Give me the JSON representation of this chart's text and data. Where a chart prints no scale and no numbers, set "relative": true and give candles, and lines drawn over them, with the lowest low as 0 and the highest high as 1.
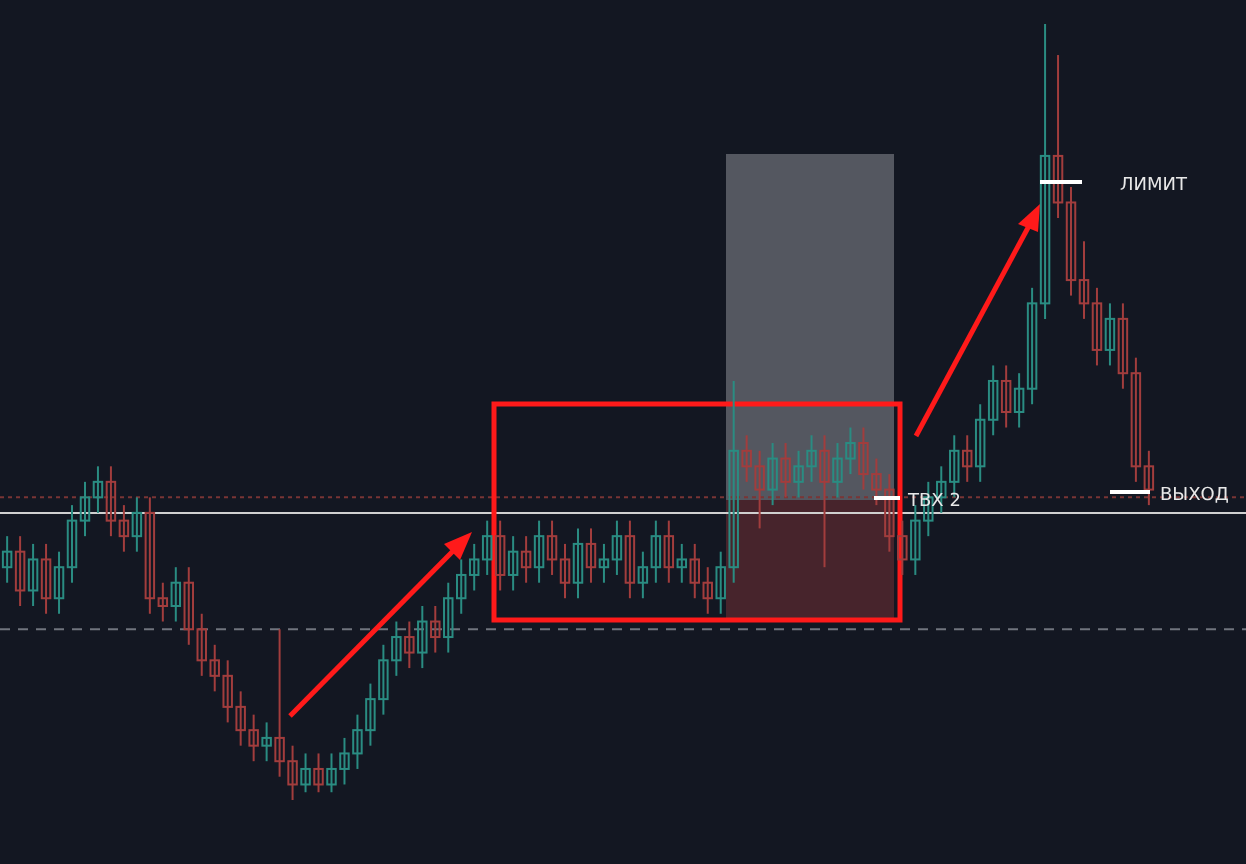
{
  "chart_data": {
    "type": "candlestick",
    "relative": true,
    "categories": [
      null,
      null,
      null,
      null,
      null,
      null,
      null,
      null,
      null,
      null,
      null,
      null,
      null,
      null,
      null,
      null,
      null,
      null,
      null,
      null,
      null,
      null,
      null,
      null,
      null,
      null,
      null,
      null,
      null,
      null,
      null,
      null,
      null,
      null,
      null,
      null,
      null,
      null,
      null,
      null,
      null,
      null,
      null,
      null,
      null,
      null,
      null,
      null,
      null,
      null,
      null,
      null,
      null,
      null,
      null,
      null,
      null,
      null,
      null,
      null,
      null,
      null,
      null,
      null,
      null,
      null,
      null,
      null,
      null,
      null,
      null,
      null,
      null,
      null,
      null,
      null,
      null,
      null,
      null,
      null,
      null,
      null,
      null,
      null,
      null,
      null,
      null,
      null,
      null
    ],
    "ohlc": [
      [
        0.3,
        0.34,
        0.28,
        0.32
      ],
      [
        0.32,
        0.34,
        0.25,
        0.27
      ],
      [
        0.27,
        0.33,
        0.25,
        0.31
      ],
      [
        0.31,
        0.33,
        0.24,
        0.26
      ],
      [
        0.26,
        0.32,
        0.24,
        0.3
      ],
      [
        0.3,
        0.38,
        0.28,
        0.36
      ],
      [
        0.36,
        0.41,
        0.34,
        0.39
      ],
      [
        0.39,
        0.43,
        0.37,
        0.41
      ],
      [
        0.41,
        0.43,
        0.34,
        0.36
      ],
      [
        0.36,
        0.38,
        0.32,
        0.34
      ],
      [
        0.34,
        0.39,
        0.32,
        0.37
      ],
      [
        0.37,
        0.39,
        0.24,
        0.26
      ],
      [
        0.26,
        0.28,
        0.23,
        0.25
      ],
      [
        0.25,
        0.3,
        0.23,
        0.28
      ],
      [
        0.28,
        0.3,
        0.2,
        0.22
      ],
      [
        0.22,
        0.24,
        0.16,
        0.18
      ],
      [
        0.18,
        0.2,
        0.14,
        0.16
      ],
      [
        0.16,
        0.18,
        0.1,
        0.12
      ],
      [
        0.12,
        0.14,
        0.07,
        0.09
      ],
      [
        0.09,
        0.11,
        0.05,
        0.07
      ],
      [
        0.07,
        0.1,
        0.05,
        0.08
      ],
      [
        0.08,
        0.22,
        0.03,
        0.05
      ],
      [
        0.05,
        0.07,
        0.0,
        0.02
      ],
      [
        0.02,
        0.06,
        0.01,
        0.04
      ],
      [
        0.04,
        0.06,
        0.01,
        0.02
      ],
      [
        0.02,
        0.06,
        0.01,
        0.04
      ],
      [
        0.04,
        0.08,
        0.02,
        0.06
      ],
      [
        0.06,
        0.11,
        0.04,
        0.09
      ],
      [
        0.09,
        0.15,
        0.07,
        0.13
      ],
      [
        0.13,
        0.2,
        0.11,
        0.18
      ],
      [
        0.18,
        0.23,
        0.16,
        0.21
      ],
      [
        0.21,
        0.23,
        0.17,
        0.19
      ],
      [
        0.19,
        0.25,
        0.17,
        0.23
      ],
      [
        0.23,
        0.25,
        0.19,
        0.21
      ],
      [
        0.21,
        0.28,
        0.19,
        0.26
      ],
      [
        0.26,
        0.31,
        0.24,
        0.29
      ],
      [
        0.29,
        0.33,
        0.27,
        0.31
      ],
      [
        0.31,
        0.36,
        0.29,
        0.34
      ],
      [
        0.34,
        0.36,
        0.27,
        0.29
      ],
      [
        0.29,
        0.34,
        0.27,
        0.32
      ],
      [
        0.32,
        0.34,
        0.28,
        0.3
      ],
      [
        0.3,
        0.36,
        0.28,
        0.34
      ],
      [
        0.34,
        0.36,
        0.29,
        0.31
      ],
      [
        0.31,
        0.33,
        0.26,
        0.28
      ],
      [
        0.28,
        0.35,
        0.26,
        0.33
      ],
      [
        0.33,
        0.35,
        0.28,
        0.3
      ],
      [
        0.3,
        0.33,
        0.28,
        0.31
      ],
      [
        0.31,
        0.36,
        0.29,
        0.34
      ],
      [
        0.34,
        0.36,
        0.26,
        0.28
      ],
      [
        0.28,
        0.32,
        0.26,
        0.3
      ],
      [
        0.3,
        0.36,
        0.28,
        0.34
      ],
      [
        0.34,
        0.36,
        0.28,
        0.3
      ],
      [
        0.3,
        0.33,
        0.28,
        0.31
      ],
      [
        0.31,
        0.33,
        0.26,
        0.28
      ],
      [
        0.28,
        0.3,
        0.24,
        0.26
      ],
      [
        0.26,
        0.32,
        0.24,
        0.3
      ],
      [
        0.3,
        0.54,
        0.28,
        0.45
      ],
      [
        0.45,
        0.47,
        0.41,
        0.43
      ],
      [
        0.43,
        0.45,
        0.35,
        0.4
      ],
      [
        0.4,
        0.46,
        0.38,
        0.44
      ],
      [
        0.44,
        0.46,
        0.39,
        0.41
      ],
      [
        0.41,
        0.45,
        0.39,
        0.43
      ],
      [
        0.43,
        0.47,
        0.41,
        0.45
      ],
      [
        0.45,
        0.47,
        0.3,
        0.41
      ],
      [
        0.41,
        0.46,
        0.39,
        0.44
      ],
      [
        0.44,
        0.48,
        0.42,
        0.46
      ],
      [
        0.46,
        0.48,
        0.4,
        0.42
      ],
      [
        0.42,
        0.44,
        0.38,
        0.4
      ],
      [
        0.4,
        0.42,
        0.32,
        0.34
      ],
      [
        0.34,
        0.36,
        0.29,
        0.31
      ],
      [
        0.31,
        0.38,
        0.29,
        0.36
      ],
      [
        0.36,
        0.41,
        0.34,
        0.39
      ],
      [
        0.39,
        0.43,
        0.37,
        0.41
      ],
      [
        0.41,
        0.47,
        0.39,
        0.45
      ],
      [
        0.45,
        0.47,
        0.41,
        0.43
      ],
      [
        0.43,
        0.51,
        0.41,
        0.49
      ],
      [
        0.49,
        0.56,
        0.47,
        0.54
      ],
      [
        0.54,
        0.56,
        0.48,
        0.5
      ],
      [
        0.5,
        0.55,
        0.48,
        0.53
      ],
      [
        0.53,
        0.66,
        0.51,
        0.64
      ],
      [
        0.64,
        1.0,
        0.62,
        0.83
      ],
      [
        0.83,
        0.96,
        0.75,
        0.77
      ],
      [
        0.77,
        0.79,
        0.65,
        0.67
      ],
      [
        0.67,
        0.72,
        0.62,
        0.64
      ],
      [
        0.64,
        0.66,
        0.56,
        0.58
      ],
      [
        0.58,
        0.64,
        0.56,
        0.62
      ],
      [
        0.62,
        0.64,
        0.53,
        0.55
      ],
      [
        0.55,
        0.57,
        0.41,
        0.43
      ],
      [
        0.43,
        0.45,
        0.38,
        0.4
      ]
    ],
    "ref_lines": [
      {
        "axis": "y",
        "value": 0.37,
        "color": "#d0d0d0",
        "line_style": "solid"
      },
      {
        "axis": "y",
        "value": 0.39,
        "color": "#7a3535",
        "line_style": "dotted"
      },
      {
        "axis": "y",
        "value": 0.22,
        "color": "#70747e",
        "line_style": "dashed"
      }
    ],
    "annotations": [
      "ЛИМИТ",
      "ТВХ 2",
      "ВЫХОД"
    ]
  }
}
